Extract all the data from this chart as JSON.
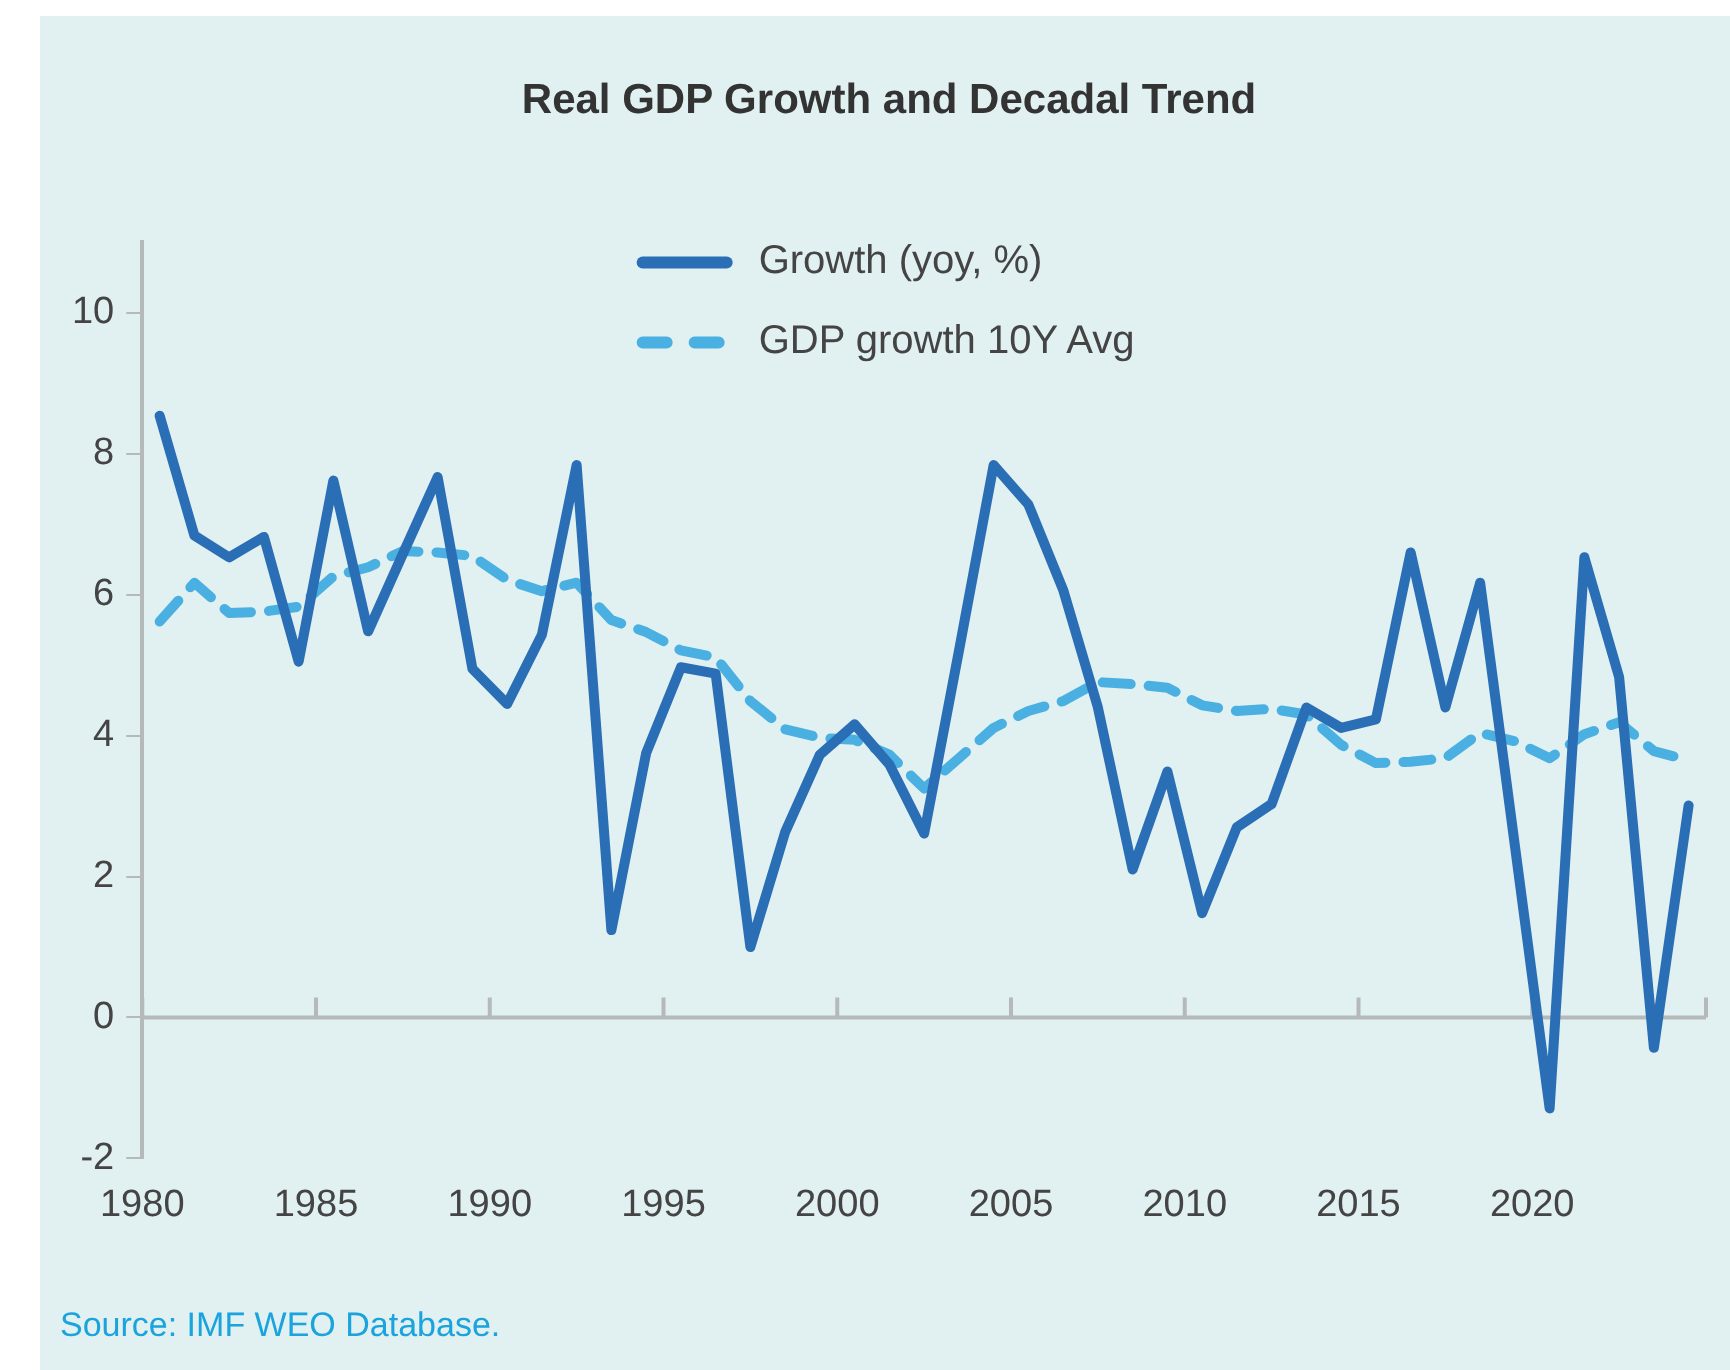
{
  "chart_data": {
    "type": "line",
    "title": "Real GDP Growth and Decadal Trend",
    "x": [
      1980.5,
      1981.5,
      1982.5,
      1983.5,
      1984.5,
      1985.5,
      1986.5,
      1987.5,
      1988.5,
      1989.5,
      1990.5,
      1991.5,
      1992.5,
      1993.5,
      1994.5,
      1995.5,
      1996.5,
      1997.5,
      1998.5,
      1999.5,
      2000.5,
      2001.5,
      2002.5,
      2003.5,
      2004.5,
      2005.5,
      2006.5,
      2007.5,
      2008.5,
      2009.5,
      2010.5,
      2011.5,
      2012.5,
      2013.5,
      2014.5,
      2015.5,
      2016.5,
      2017.5,
      2018.5,
      2019.5,
      2020.5,
      2021.5,
      2022.5,
      2023.5,
      2024.5
    ],
    "series": [
      {
        "name": "Growth (yoy, %)",
        "color": "#2a6eb5",
        "line_style": "solid",
        "values": [
          8.54,
          6.84,
          6.53,
          6.82,
          5.05,
          7.62,
          5.48,
          6.58,
          7.67,
          4.95,
          4.45,
          5.43,
          7.84,
          1.24,
          3.75,
          4.97,
          4.88,
          1.0,
          2.63,
          3.73,
          4.16,
          3.59,
          2.61,
          5.2,
          7.84,
          7.28,
          6.07,
          4.4,
          2.1,
          3.49,
          1.48,
          2.7,
          3.03,
          4.4,
          4.11,
          4.23,
          6.6,
          4.4,
          6.17,
          2.44,
          -1.29,
          6.53,
          4.83,
          -0.43,
          3.01
        ]
      },
      {
        "name": "GDP growth 10Y Avg",
        "color": "#4ab0e2",
        "line_style": "dashed",
        "values": [
          5.62,
          6.17,
          5.74,
          5.76,
          5.83,
          6.26,
          6.39,
          6.62,
          6.6,
          6.55,
          6.21,
          6.05,
          6.17,
          5.64,
          5.47,
          5.21,
          5.11,
          4.49,
          4.09,
          3.97,
          3.94,
          3.73,
          3.25,
          3.68,
          4.11,
          4.35,
          4.49,
          4.76,
          4.73,
          4.68,
          4.43,
          4.35,
          4.38,
          4.3,
          3.87,
          3.61,
          3.63,
          3.68,
          4.04,
          3.92,
          3.68,
          4.02,
          4.19,
          3.78,
          3.65
        ]
      }
    ],
    "xlim": [
      1980,
      2025
    ],
    "xticks": [
      1980,
      1985,
      1990,
      1995,
      2000,
      2005,
      2010,
      2015,
      2020,
      {
        "value": 2025,
        "label": null
      }
    ],
    "ylim": [
      -2,
      11
    ],
    "yticks": [
      -2,
      0,
      2,
      4,
      6,
      8,
      10
    ],
    "ref_lines": [
      {
        "axis": "y",
        "value": 0,
        "color": "#b5b9ba"
      }
    ],
    "grid": false,
    "legend": "top",
    "marker": "none",
    "annotations": [
      "Source: IMF WEO Database."
    ]
  }
}
